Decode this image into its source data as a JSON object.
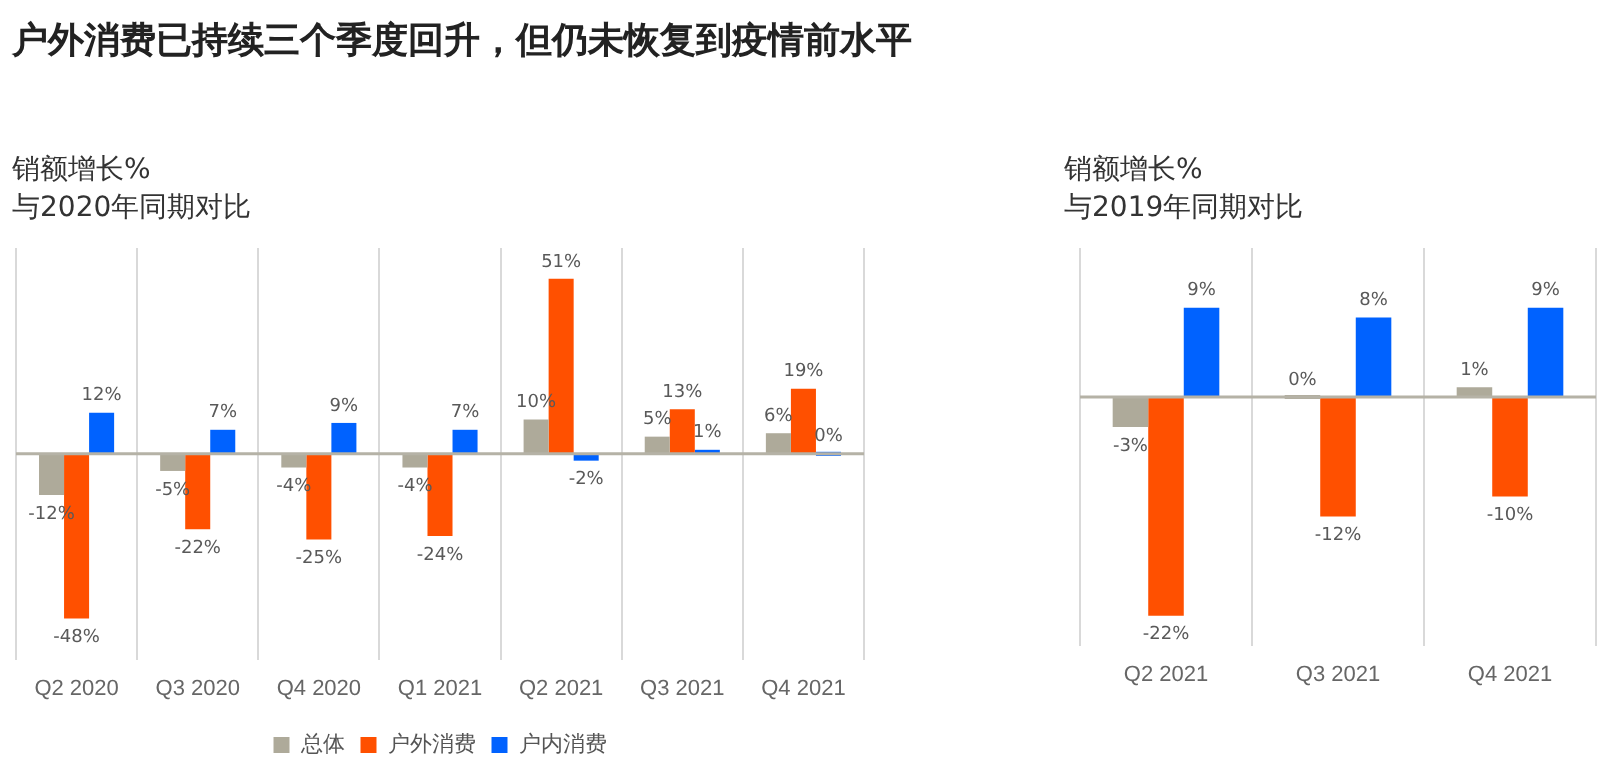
{
  "chart_data": [
    {
      "type": "bar",
      "title": "户外消费已持续三个季度回升，但仍未恢复到疫情前水平",
      "subtitle": "销额增长%\n与2020年同期对比",
      "categories": [
        "Q2 2020",
        "Q3 2020",
        "Q4 2020",
        "Q1 2021",
        "Q2 2021",
        "Q3 2021",
        "Q4 2021"
      ],
      "series": [
        {
          "name": "总体",
          "color": "#aeaa9a",
          "values": [
            -12,
            -5,
            -4,
            -4,
            10,
            5,
            6
          ],
          "value_labels": [
            "-12%",
            "-5%",
            "-4%",
            "-4%",
            "10%",
            "5%",
            "6%"
          ]
        },
        {
          "name": "户外消费",
          "color": "#ff5000",
          "values": [
            -48,
            -22,
            -25,
            -24,
            51,
            13,
            19
          ],
          "value_labels": [
            "-48%",
            "-22%",
            "-25%",
            "-24%",
            "51%",
            "13%",
            "19%"
          ]
        },
        {
          "name": "户内消费",
          "color": "#0062ff",
          "values": [
            12,
            7,
            9,
            7,
            -2,
            1,
            0
          ],
          "value_labels": [
            "12%",
            "7%",
            "9%",
            "7%",
            "-2%",
            "1%",
            "0%"
          ]
        }
      ],
      "grid": "x",
      "legend": "bottom",
      "tick_labels": "x"
    },
    {
      "type": "bar",
      "subtitle": "销额增长%\n与2019年同期对比",
      "categories": [
        "Q2 2021",
        "Q3 2021",
        "Q4 2021"
      ],
      "series": [
        {
          "color": "#aeaa9a",
          "values": [
            -3,
            0,
            1
          ],
          "value_labels": [
            "-3%",
            "0%",
            "1%"
          ]
        },
        {
          "color": "#ff5000",
          "values": [
            -22,
            -12,
            -10
          ],
          "value_labels": [
            "-22%",
            "-12%",
            "-10%"
          ]
        },
        {
          "color": "#0062ff",
          "values": [
            9,
            8,
            9
          ],
          "value_labels": [
            "9%",
            "8%",
            "9%"
          ]
        }
      ],
      "grid": "x",
      "tick_labels": "x"
    }
  ]
}
